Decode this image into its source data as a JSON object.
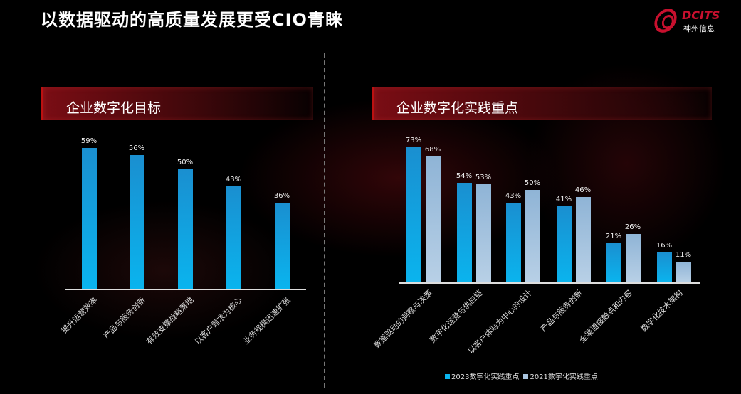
{
  "title": "以数据驱动的高质量发展更受CIO青睐",
  "logo": {
    "brand": "DCITS",
    "name": "神州信息"
  },
  "colors": {
    "series_2023": "#0ab4ee",
    "series_2021": "#a9c4de",
    "banner": "#7a0d14"
  },
  "chart_data": [
    {
      "type": "bar",
      "title": "企业数字化目标",
      "categories": [
        "提升运营效率",
        "产品与服务创新",
        "有效支撑战略落地",
        "以客户需求为核心",
        "业务规模迅速扩张"
      ],
      "values": [
        59,
        56,
        50,
        43,
        36
      ],
      "labels": [
        "59%",
        "56%",
        "50%",
        "43%",
        "36%"
      ],
      "ylim": [
        0,
        100
      ]
    },
    {
      "type": "bar",
      "title": "企业数字化实践重点",
      "categories": [
        "数据驱动的洞察与决策",
        "数字化运营与供应链",
        "以客户体验为中心的设计",
        "产品与服务创新",
        "全渠道接触点和内容",
        "数字化技术架构"
      ],
      "series": [
        {
          "name": "2023数字化实践重点",
          "values": [
            73,
            54,
            43,
            41,
            21,
            16
          ],
          "labels": [
            "73%",
            "54%",
            "43%",
            "41%",
            "21%",
            "16%"
          ]
        },
        {
          "name": "2021数字化实践重点",
          "values": [
            68,
            53,
            50,
            46,
            26,
            11
          ],
          "labels": [
            "68%",
            "53%",
            "50%",
            "46%",
            "26%",
            "11%"
          ]
        }
      ],
      "legend": "bottom",
      "ylim": [
        0,
        100
      ]
    }
  ]
}
